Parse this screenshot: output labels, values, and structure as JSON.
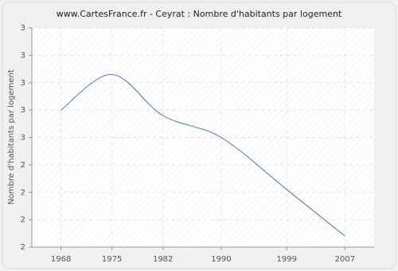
{
  "chart_data": {
    "type": "line",
    "title": "www.CartesFrance.fr - Ceyrat : Nombre d'habitants par logement",
    "y_label": "Nombre d'habitants par logement",
    "x": [
      1968,
      1975,
      1982,
      1990,
      1999,
      2007
    ],
    "series": [
      {
        "name": "Ceyrat",
        "color": "#4a74a8",
        "values": [
          2.6,
          2.73,
          2.58,
          2.5,
          2.31,
          2.14
        ]
      }
    ],
    "xlim": [
      1964,
      2011
    ],
    "xticks": [
      1968,
      1975,
      1982,
      1990,
      1999,
      2007
    ],
    "ylim": [
      2.1,
      2.9
    ],
    "yticks": [
      {
        "value": 2.1,
        "label": "2"
      },
      {
        "value": 2.2,
        "label": "2"
      },
      {
        "value": 2.3,
        "label": "2"
      },
      {
        "value": 2.4,
        "label": "2"
      },
      {
        "value": 2.5,
        "label": "3"
      },
      {
        "value": 2.6,
        "label": "3"
      },
      {
        "value": 2.7,
        "label": "3"
      },
      {
        "value": 2.8,
        "label": "3"
      },
      {
        "value": 2.9,
        "label": "3"
      }
    ],
    "grid": true
  }
}
